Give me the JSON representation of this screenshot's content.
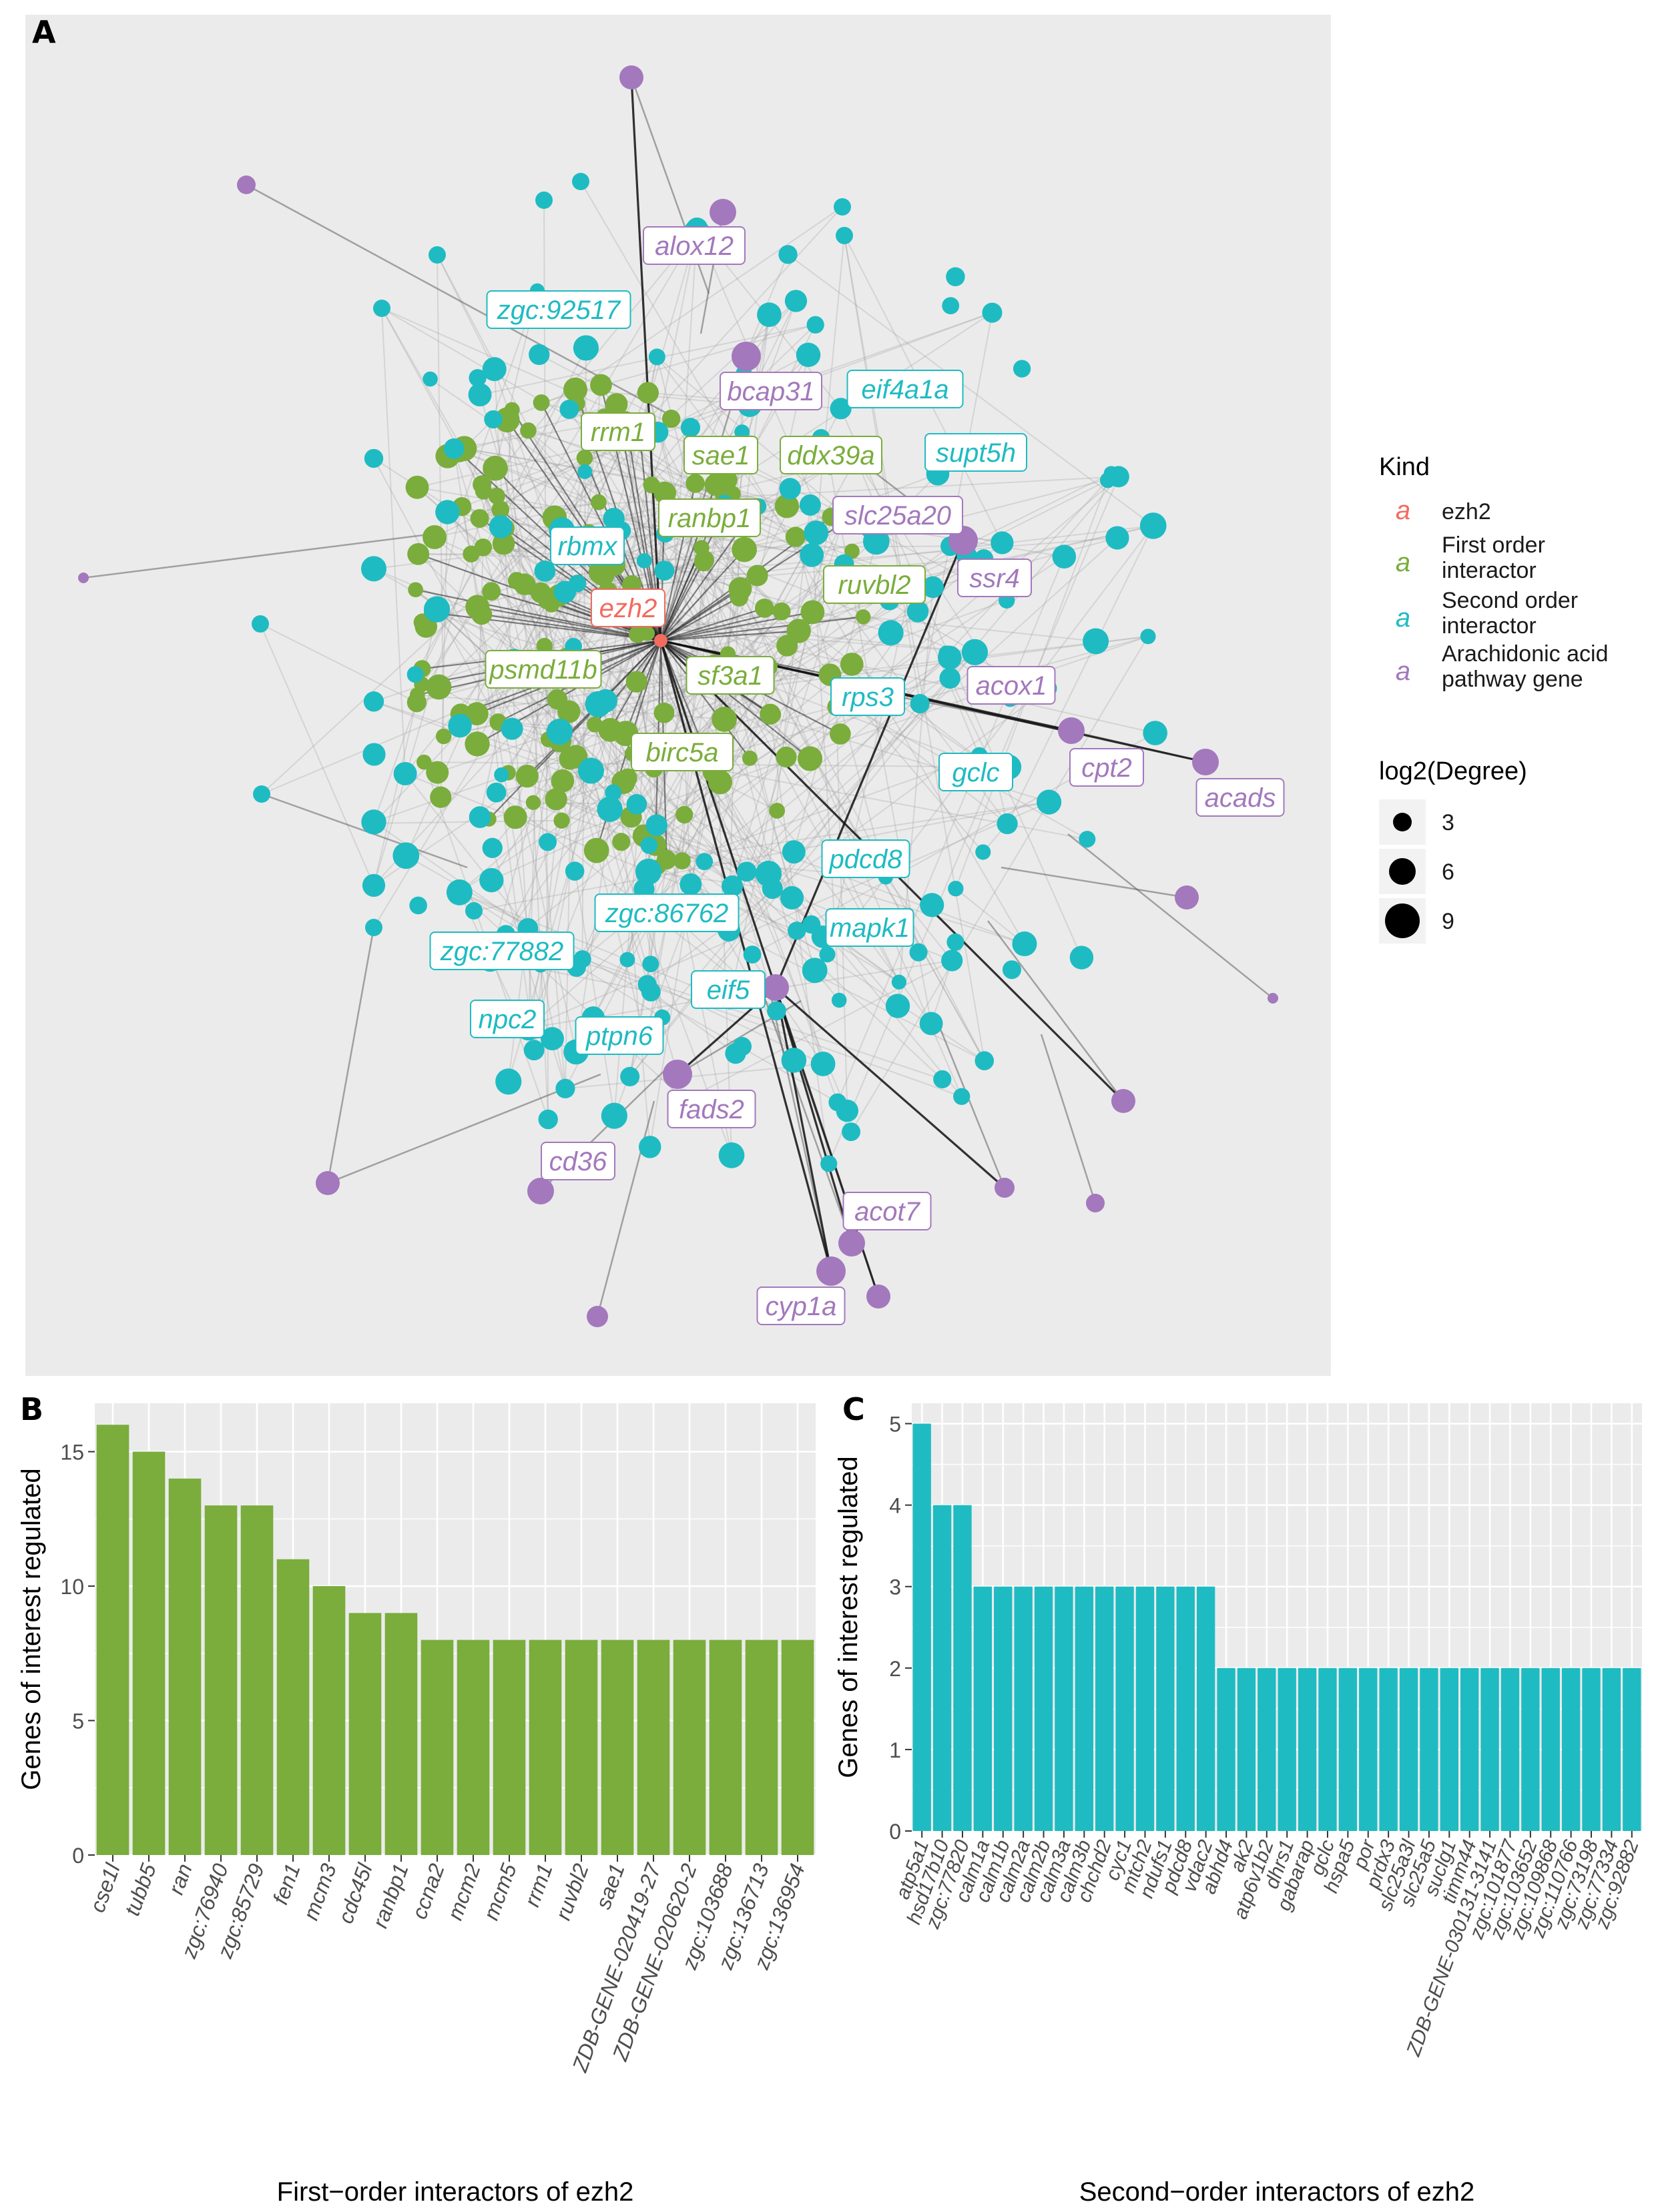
{
  "colors": {
    "ezh2": "#F26B5F",
    "first": "#7AAD3C",
    "second": "#1FBBC2",
    "arach": "#A378BC",
    "panel_bg": "#EBEBEB",
    "grid": "#FFFFFF"
  },
  "panels": {
    "a": "A",
    "b": "B",
    "c": "C"
  },
  "legend": {
    "kind_title": "Kind",
    "kind_key_glyph": "a",
    "kind_items": [
      {
        "key": "ezh2",
        "lines": [
          "ezh2"
        ]
      },
      {
        "key": "first",
        "lines": [
          "First order",
          "interactor"
        ]
      },
      {
        "key": "second",
        "lines": [
          "Second order",
          "interactor"
        ]
      },
      {
        "key": "arach",
        "lines": [
          "Arachidonic acid",
          "pathway gene"
        ]
      }
    ],
    "size_title": "log2(Degree)",
    "size_items": [
      "3",
      "6",
      "9"
    ]
  },
  "network_labels": [
    {
      "text": "alox12",
      "kind": "arach"
    },
    {
      "text": "zgc:92517",
      "kind": "second"
    },
    {
      "text": "bcap31",
      "kind": "arach"
    },
    {
      "text": "eif4a1a",
      "kind": "second"
    },
    {
      "text": "rrm1",
      "kind": "first"
    },
    {
      "text": "sae1",
      "kind": "first"
    },
    {
      "text": "ddx39a",
      "kind": "first"
    },
    {
      "text": "supt5h",
      "kind": "second"
    },
    {
      "text": "ranbp1",
      "kind": "first"
    },
    {
      "text": "slc25a20",
      "kind": "arach"
    },
    {
      "text": "rbmx",
      "kind": "second"
    },
    {
      "text": "ssr4",
      "kind": "arach"
    },
    {
      "text": "ruvbl2",
      "kind": "first"
    },
    {
      "text": "ezh2",
      "kind": "ezh2"
    },
    {
      "text": "psmd11b",
      "kind": "first"
    },
    {
      "text": "sf3a1",
      "kind": "first"
    },
    {
      "text": "acox1",
      "kind": "arach"
    },
    {
      "text": "rps3",
      "kind": "second"
    },
    {
      "text": "birc5a",
      "kind": "first"
    },
    {
      "text": "gclc",
      "kind": "second"
    },
    {
      "text": "cpt2",
      "kind": "arach"
    },
    {
      "text": "acads",
      "kind": "arach"
    },
    {
      "text": "pdcd8",
      "kind": "second"
    },
    {
      "text": "zgc:86762",
      "kind": "second"
    },
    {
      "text": "mapk1",
      "kind": "second"
    },
    {
      "text": "zgc:77882",
      "kind": "second"
    },
    {
      "text": "eif5",
      "kind": "second"
    },
    {
      "text": "npc2",
      "kind": "second"
    },
    {
      "text": "ptpn6",
      "kind": "second"
    },
    {
      "text": "fads2",
      "kind": "arach"
    },
    {
      "text": "cd36",
      "kind": "arach"
    },
    {
      "text": "acot7",
      "kind": "arach"
    },
    {
      "text": "cyp1a",
      "kind": "arach"
    }
  ],
  "chart_data": [
    {
      "type": "bar",
      "panel": "B",
      "categories": [
        "cse1l",
        "tubb5",
        "ran",
        "zgc:76940",
        "zgc:85729",
        "fen1",
        "mcm3",
        "cdc45l",
        "ranbp1",
        "ccna2",
        "mcm2",
        "mcm5",
        "rrm1",
        "ruvbl2",
        "sae1",
        "ZDB-GENE-020419-27",
        "ZDB-GENE-020620-2",
        "zgc:103688",
        "zgc:136713",
        "zgc:136954"
      ],
      "values": [
        16,
        15,
        14,
        13,
        13,
        11,
        10,
        9,
        9,
        8,
        8,
        8,
        8,
        8,
        8,
        8,
        8,
        8,
        8,
        8
      ],
      "xlabel": "First−order interactors of ezh2",
      "ylabel": "Genes of interest regulated",
      "ylim": [
        0,
        16.8
      ],
      "yticks": [
        "0",
        "5",
        "10",
        "15"
      ],
      "color": "#7AAD3C",
      "grid": true
    },
    {
      "type": "bar",
      "panel": "C",
      "categories": [
        "atp5a1",
        "hsd17b10",
        "zgc:77820",
        "calm1a",
        "calm1b",
        "calm2a",
        "calm2b",
        "calm3a",
        "calm3b",
        "chchd2",
        "cyc1",
        "mtch2",
        "ndufs1",
        "pdcd8",
        "vdac2",
        "abhd4",
        "ak2",
        "atp6v1b2",
        "dhrs1",
        "gabarap",
        "gclc",
        "hspa5",
        "por",
        "prdx3",
        "slc25a3l",
        "slc25a5",
        "suclg1",
        "timm44",
        "ZDB-GENE-030131-3141",
        "zgc:101877",
        "zgc:103652",
        "zgc:109868",
        "zgc:110766",
        "zgc:73198",
        "zgc:77334",
        "zgc:92882"
      ],
      "values": [
        5,
        4,
        4,
        3,
        3,
        3,
        3,
        3,
        3,
        3,
        3,
        3,
        3,
        3,
        3,
        2,
        2,
        2,
        2,
        2,
        2,
        2,
        2,
        2,
        2,
        2,
        2,
        2,
        2,
        2,
        2,
        2,
        2,
        2,
        2,
        2
      ],
      "xlabel": "Second−order interactors of ezh2",
      "ylabel": "Genes of interest regulated",
      "ylim": [
        0,
        5.25
      ],
      "yticks": [
        "0",
        "1",
        "2",
        "3",
        "4",
        "5"
      ],
      "color": "#1FBBC2",
      "grid": true
    }
  ]
}
